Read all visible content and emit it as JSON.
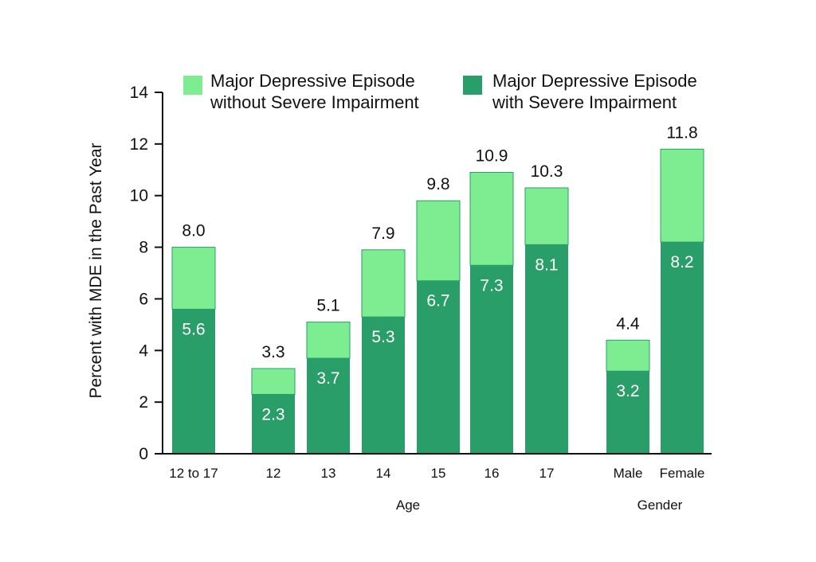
{
  "chart_data": {
    "type": "bar",
    "stacked": true,
    "title": "",
    "xlabel": "",
    "ylabel": "Percent with MDE in the Past Year",
    "ylim": [
      0,
      14
    ],
    "yticks": [
      0,
      2,
      4,
      6,
      8,
      10,
      12,
      14
    ],
    "grid": false,
    "legend_position": "top",
    "categories": [
      "12 to 17",
      "12",
      "13",
      "14",
      "15",
      "16",
      "17",
      "Male",
      "Female"
    ],
    "groups": [
      {
        "label": "Age",
        "categories": [
          "12",
          "13",
          "14",
          "15",
          "16",
          "17"
        ]
      },
      {
        "label": "Gender",
        "categories": [
          "Male",
          "Female"
        ]
      }
    ],
    "series": [
      {
        "name": "Major Depressive Episode with Severe Impairment",
        "legend_lines": [
          "Major Depressive Episode",
          "with Severe Impairment"
        ],
        "color": "#2a9e68",
        "values": [
          5.6,
          2.3,
          3.7,
          5.3,
          6.7,
          7.3,
          8.1,
          3.2,
          8.2
        ],
        "labels": [
          "5.6",
          "2.3",
          "3.7",
          "5.3",
          "6.7",
          "7.3",
          "8.1",
          "3.2",
          "8.2"
        ]
      },
      {
        "name": "Major Depressive Episode without Severe Impairment",
        "legend_lines": [
          "Major Depressive Episode",
          "without Severe Impairment"
        ],
        "color": "#7eec91",
        "values": [
          2.4,
          1.0,
          1.4,
          2.6,
          3.1,
          3.6,
          2.2,
          1.2,
          3.6
        ],
        "labels": null
      }
    ],
    "totals": [
      8.0,
      3.3,
      5.1,
      7.9,
      9.8,
      10.9,
      10.3,
      4.4,
      11.8
    ],
    "total_labels": [
      "8.0",
      "3.3",
      "5.1",
      "7.9",
      "9.8",
      "10.9",
      "10.3",
      "4.4",
      "11.8"
    ]
  }
}
